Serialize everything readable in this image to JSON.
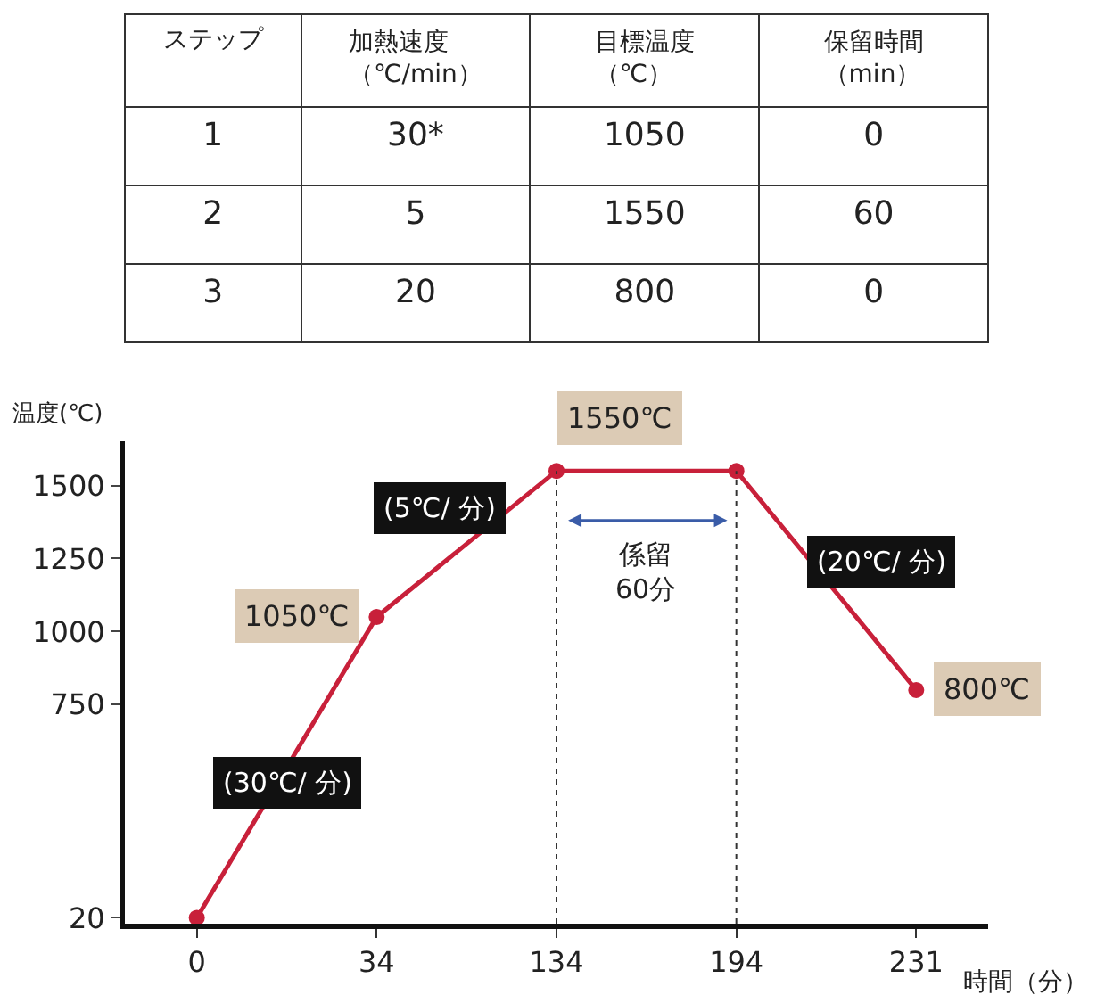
{
  "chart_data": [
    {
      "type": "other",
      "categories": [
        "ステップ",
        "加熱速度（℃/min）",
        "目標温度（℃）",
        "保留時間（min）"
      ],
      "cell_labels": [
        [
          "1",
          "30*",
          "1050",
          "0"
        ],
        [
          "2",
          "5",
          "1550",
          "60"
        ],
        [
          "3",
          "20",
          "800",
          "0"
        ]
      ]
    },
    {
      "type": "line",
      "xlabel": "時間（分）",
      "ylabel": "温度(℃)",
      "categories": [
        "0",
        "34",
        "134",
        "194",
        "231"
      ],
      "series": [
        {
          "color": "#c8203a",
          "values": [
            20,
            1050,
            1550,
            1550,
            800
          ]
        }
      ],
      "ylim": [
        0,
        1650
      ],
      "yticks": [
        20,
        750,
        1000,
        1250,
        1500
      ],
      "marker": "circle",
      "line_style": "solid",
      "ref_lines": [
        {
          "axis": "x",
          "value": "134",
          "line_style": "dotted"
        },
        {
          "axis": "x",
          "value": "194",
          "line_style": "dotted"
        }
      ],
      "annotations": [
        {
          "text": "1550℃",
          "x": "134",
          "y": 1550
        },
        {
          "text": "1050℃",
          "x": "34",
          "y": 1050
        },
        {
          "text": "800℃",
          "x": "231",
          "y": 800
        },
        "(30℃/ 分)",
        "(5℃/ 分)",
        "(20℃/ 分)",
        "係留\n60分"
      ]
    }
  ]
}
